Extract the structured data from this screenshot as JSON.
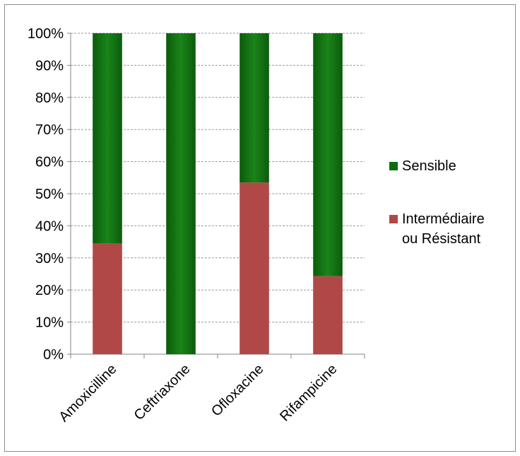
{
  "chart_data": {
    "type": "bar",
    "stacked": true,
    "categories": [
      "Amoxicilline",
      "Ceftriaxone",
      "Ofloxacine",
      "Rifampicine"
    ],
    "series": [
      {
        "name": "Intermédiaire\nou Résistant",
        "values": [
          34.5,
          0,
          53.5,
          24.3
        ],
        "color": "#b04848"
      },
      {
        "name": "Sensible",
        "values": [
          65.5,
          100,
          46.5,
          75.7
        ],
        "color": "#1c7a1c"
      }
    ],
    "ylim": [
      0,
      100
    ],
    "yticks": [
      "0%",
      "10%",
      "20%",
      "30%",
      "40%",
      "50%",
      "60%",
      "70%",
      "80%",
      "90%",
      "100%"
    ],
    "grid": true,
    "legend_position": "right",
    "legend": [
      "Sensible",
      "Intermédiaire\nou Résistant"
    ]
  }
}
